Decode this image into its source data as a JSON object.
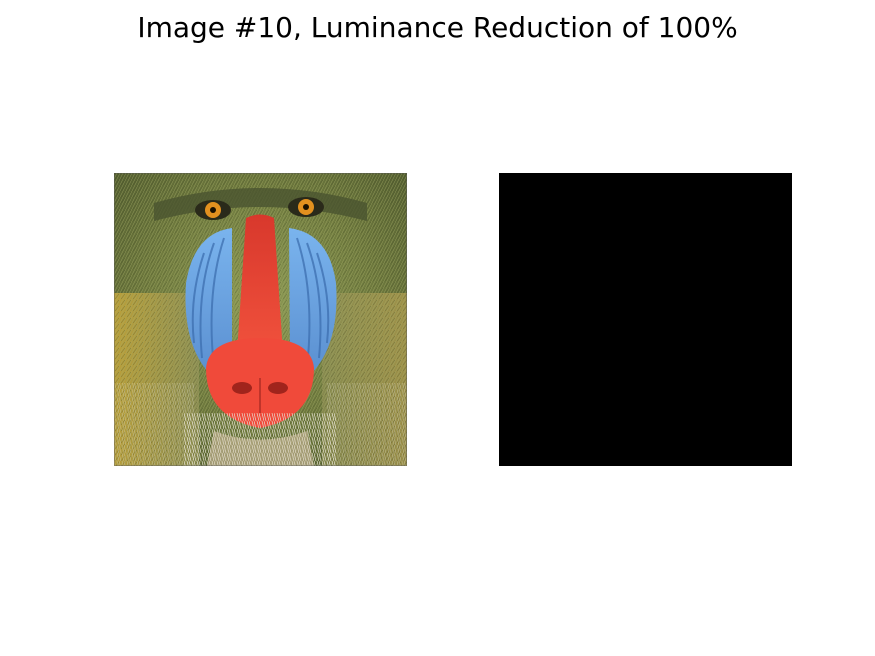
{
  "figure": {
    "title": "Image #10, Luminance Reduction of 100%"
  },
  "panels": [
    {
      "content": "mandrill-photo"
    },
    {
      "content": "black-image",
      "fill_color": "#000000",
      "luminance_reduction_percent": 100
    }
  ],
  "colors": {
    "background": "#ffffff",
    "title_text": "#000000",
    "fur": "#6f7a3e",
    "snout": "#f04a3a",
    "cheeks": "#6fa9e6",
    "eyes": "#e2901f"
  }
}
